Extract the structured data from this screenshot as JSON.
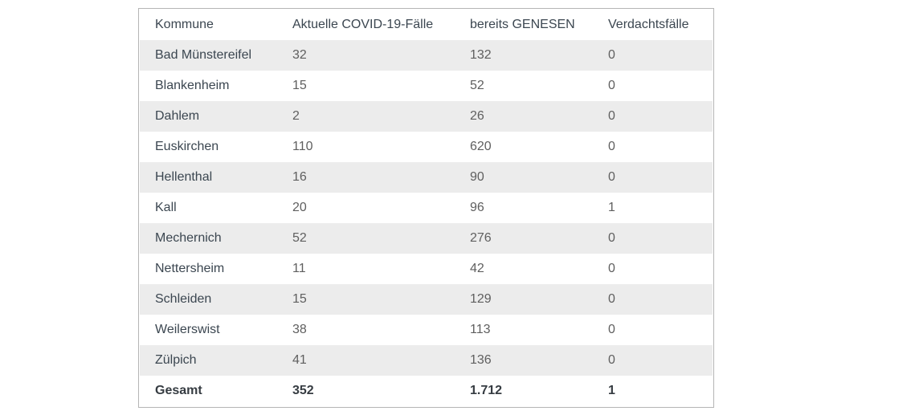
{
  "colors": {
    "stripe": "#ececec",
    "border": "#b5b5b5",
    "header_text": "#3b4650",
    "name_text": "#3b4650",
    "number_text": "#5f5f5f",
    "total_text": "#363c42",
    "page_bg": "#ffffff"
  },
  "chart_data": {
    "type": "table",
    "columns": [
      "Kommune",
      "Aktuelle COVID-19-Fälle",
      "bereits GENESEN",
      "Verdachtsfälle"
    ],
    "rows": [
      [
        "Bad Münstereifel",
        "32",
        "132",
        "0"
      ],
      [
        "Blankenheim",
        "15",
        "52",
        "0"
      ],
      [
        "Dahlem",
        "2",
        "26",
        "0"
      ],
      [
        "Euskirchen",
        "110",
        "620",
        "0"
      ],
      [
        "Hellenthal",
        "16",
        "90",
        "0"
      ],
      [
        "Kall",
        "20",
        "96",
        "1"
      ],
      [
        "Mechernich",
        "52",
        "276",
        "0"
      ],
      [
        "Nettersheim",
        "11",
        "42",
        "0"
      ],
      [
        "Schleiden",
        "15",
        "129",
        "0"
      ],
      [
        "Weilerswist",
        "38",
        "113",
        "0"
      ],
      [
        "Zülpich",
        "41",
        "136",
        "0"
      ]
    ],
    "total_row": [
      "Gesamt",
      "352",
      "1.712",
      "1"
    ],
    "layout": {
      "striped": true,
      "first_data_row_striped": true,
      "total_row_bold": true
    }
  }
}
